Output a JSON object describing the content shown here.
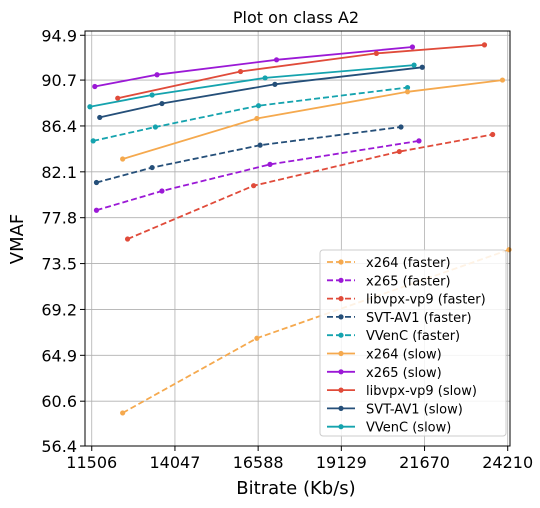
{
  "chart_data": {
    "type": "line",
    "title": "Plot on class A2",
    "xlabel": "Bitrate (Kb/s)",
    "ylabel": "VMAF",
    "xlim": [
      11300,
      24280
    ],
    "ylim": [
      56.4,
      95.3
    ],
    "xticks": [
      11506,
      14047,
      16588,
      19129,
      21670,
      24210
    ],
    "yticks": [
      56.4,
      60.6,
      64.9,
      69.2,
      73.5,
      77.8,
      82.1,
      86.4,
      90.7,
      94.9
    ],
    "xtick_labels": [
      "11506",
      "14047",
      "16588",
      "19129",
      "21670",
      "24210"
    ],
    "ytick_labels": [
      "56.4",
      "60.6",
      "64.9",
      "69.2",
      "73.5",
      "77.8",
      "82.1",
      "86.4",
      "90.7",
      "94.9"
    ],
    "grid": true,
    "legend_location": "lower-right",
    "series": [
      {
        "name": "x264 (faster)",
        "color": "#f5a94e",
        "dash": true,
        "x": [
          12450,
          16550,
          24250
        ],
        "y": [
          59.5,
          66.5,
          74.8
        ]
      },
      {
        "name": "x265 (faster)",
        "color": "#9b19d6",
        "dash": true,
        "x": [
          11650,
          13650,
          16950,
          21500
        ],
        "y": [
          78.5,
          80.3,
          82.8,
          85.0
        ]
      },
      {
        "name": "libvpx-vp9 (faster)",
        "color": "#e04b3a",
        "dash": true,
        "x": [
          12600,
          16450,
          20900,
          23750
        ],
        "y": [
          75.8,
          80.8,
          84.0,
          85.6
        ]
      },
      {
        "name": "SVT-AV1 (faster)",
        "color": "#254f79",
        "dash": true,
        "x": [
          11650,
          13350,
          16650,
          20950
        ],
        "y": [
          81.1,
          82.5,
          84.6,
          86.3
        ]
      },
      {
        "name": "VVenC (faster)",
        "color": "#15a3ae",
        "dash": true,
        "x": [
          11550,
          13450,
          16600,
          21150
        ],
        "y": [
          85.0,
          86.3,
          88.3,
          90.0
        ]
      },
      {
        "name": "x264 (slow)",
        "color": "#f5a94e",
        "dash": false,
        "x": [
          12450,
          16550,
          21150,
          24050
        ],
        "y": [
          83.3,
          87.1,
          89.6,
          90.7
        ]
      },
      {
        "name": "x265 (slow)",
        "color": "#9b19d6",
        "dash": false,
        "x": [
          11600,
          13500,
          17150,
          21300
        ],
        "y": [
          90.1,
          91.2,
          92.6,
          93.8
        ]
      },
      {
        "name": "libvpx-vp9 (slow)",
        "color": "#e04b3a",
        "dash": false,
        "x": [
          12300,
          16050,
          20200,
          23500
        ],
        "y": [
          89.0,
          91.5,
          93.2,
          94.0
        ]
      },
      {
        "name": "SVT-AV1 (slow)",
        "color": "#254f79",
        "dash": false,
        "x": [
          11750,
          13650,
          17100,
          21600
        ],
        "y": [
          87.2,
          88.5,
          90.3,
          91.9
        ]
      },
      {
        "name": "VVenC (slow)",
        "color": "#15a3ae",
        "dash": false,
        "x": [
          11450,
          13350,
          16800,
          21350
        ],
        "y": [
          88.2,
          89.3,
          90.9,
          92.1
        ]
      }
    ]
  }
}
